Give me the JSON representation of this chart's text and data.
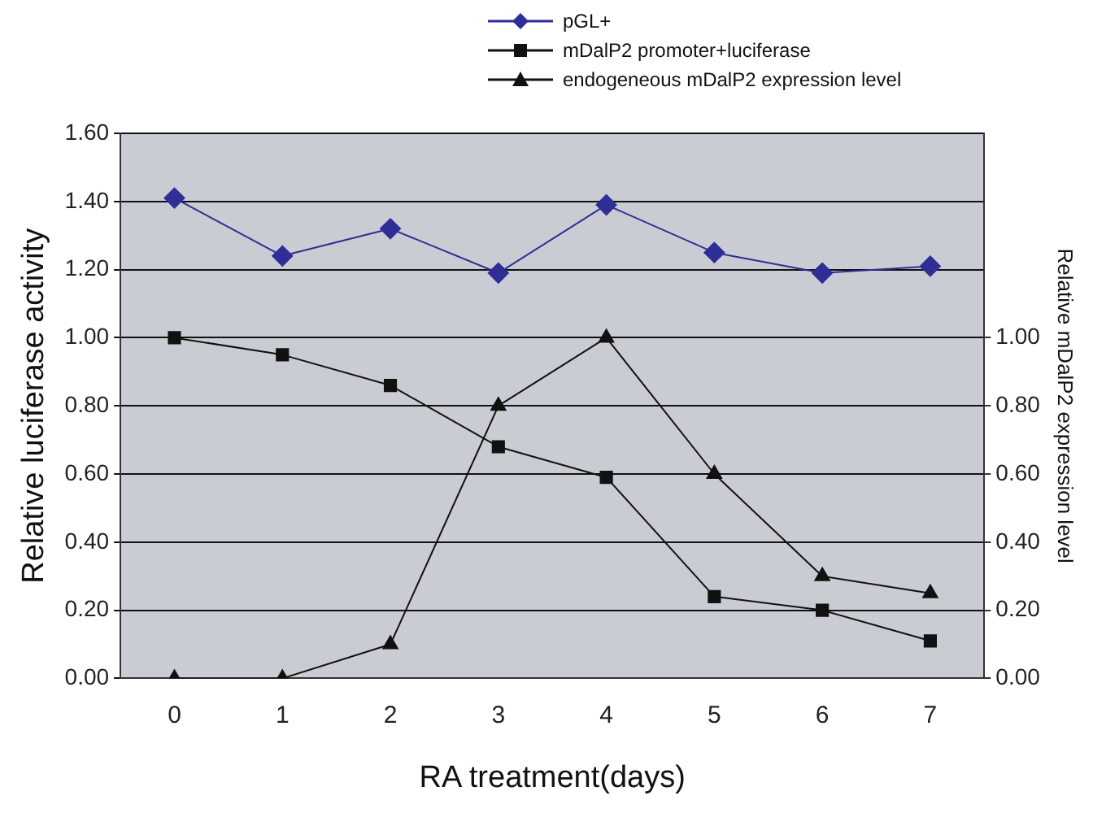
{
  "chart_data": {
    "type": "line",
    "xlabel": "RA treatment(days)",
    "ylabel": "Relative luciferase activity",
    "y2label": "Relative mDalP2 expression level",
    "categories": [
      "0",
      "1",
      "2",
      "3",
      "4",
      "5",
      "6",
      "7"
    ],
    "ylim": [
      0,
      1.6
    ],
    "yticks": [
      {
        "value": 0,
        "label": "0.00"
      },
      {
        "value": 0.2,
        "label": "0.20"
      },
      {
        "value": 0.4,
        "label": "0.40"
      },
      {
        "value": 0.6,
        "label": "0.60"
      },
      {
        "value": 0.8,
        "label": "0.80"
      },
      {
        "value": 1,
        "label": "1.00"
      },
      {
        "value": 1.2,
        "label": "1.20"
      },
      {
        "value": 1.4,
        "label": "1.40"
      },
      {
        "value": 1.6,
        "label": "1.60"
      }
    ],
    "y2lim": [
      0,
      1.6
    ],
    "y2ticks": [
      {
        "value": 0,
        "label": "0.00"
      },
      {
        "value": 0.2,
        "label": "0.20"
      },
      {
        "value": 0.4,
        "label": "0.40"
      },
      {
        "value": 0.6,
        "label": "0.60"
      },
      {
        "value": 0.8,
        "label": "0.80"
      },
      {
        "value": 1,
        "label": "1.00"
      }
    ],
    "grid": "y",
    "legend": "top",
    "series": [
      {
        "name": "pGL+",
        "color": "#2e2e96",
        "marker": "diamond",
        "values": [
          1.41,
          1.24,
          1.32,
          1.19,
          1.39,
          1.25,
          1.19,
          1.21
        ]
      },
      {
        "name": "mDalP2 promoter+luciferase",
        "color": "#111111",
        "marker": "square",
        "values": [
          1.0,
          0.95,
          0.86,
          0.68,
          0.59,
          0.24,
          0.2,
          0.11
        ]
      },
      {
        "name": "endogeneous mDalP2 expression level",
        "color": "#111111",
        "marker": "triangle",
        "axis": "y2",
        "values": [
          0,
          0,
          0.1,
          0.8,
          1.0,
          0.6,
          0.3,
          0.25
        ]
      }
    ]
  }
}
